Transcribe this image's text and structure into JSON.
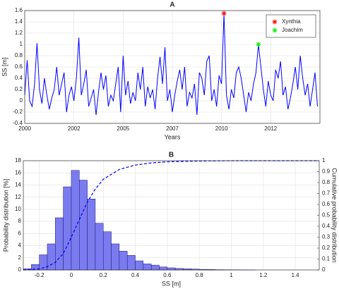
{
  "chart_data": [
    {
      "type": "line",
      "title": "A",
      "x_label": "Years",
      "y_label": "SS [m]",
      "x": [
        2000,
        2000.125,
        2000.25,
        2000.375,
        2000.5,
        2000.625,
        2000.75,
        2000.875,
        2001,
        2001.125,
        2001.25,
        2001.375,
        2001.5,
        2001.625,
        2001.75,
        2001.875,
        2002,
        2002.125,
        2002.25,
        2002.375,
        2002.5,
        2002.625,
        2002.75,
        2002.875,
        2003,
        2003.125,
        2003.25,
        2003.375,
        2003.5,
        2003.625,
        2003.75,
        2003.875,
        2004,
        2004.125,
        2004.25,
        2004.375,
        2004.5,
        2004.625,
        2004.75,
        2004.875,
        2005,
        2005.125,
        2005.25,
        2005.375,
        2005.5,
        2005.625,
        2005.75,
        2005.875,
        2006,
        2006.125,
        2006.25,
        2006.375,
        2006.5,
        2006.625,
        2006.75,
        2006.875,
        2007,
        2007.125,
        2007.25,
        2007.375,
        2007.5,
        2007.625,
        2007.75,
        2007.875,
        2008,
        2008.125,
        2008.25,
        2008.375,
        2008.5,
        2008.625,
        2008.75,
        2008.875,
        2009,
        2009.125,
        2009.25,
        2009.375,
        2009.5,
        2009.625,
        2009.75,
        2009.875,
        2010,
        2010.125,
        2010.25,
        2010.375,
        2010.5,
        2010.625,
        2010.75,
        2010.875,
        2011,
        2011.125,
        2011.25,
        2011.375,
        2011.5,
        2011.625,
        2011.75,
        2011.875,
        2012,
        2012.125,
        2012.25,
        2012.375,
        2012.5,
        2012.625,
        2012.75,
        2012.875,
        2013,
        2013.125,
        2013.25,
        2013.375,
        2013.5,
        2013.625,
        2013.75,
        2013.875,
        2014,
        2014.125,
        2014.25,
        2014.375,
        2014.5,
        2014.625,
        2014.75,
        2014.875
      ],
      "series": [
        {
          "color": "#0000ff",
          "values": [
            0.1,
            0.72,
            0.0,
            -0.1,
            0.3,
            1.02,
            0.2,
            -0.05,
            0.4,
            0.1,
            -0.15,
            0.05,
            0.2,
            0.6,
            0.1,
            0.3,
            0.5,
            -0.2,
            0.1,
            0.25,
            0.0,
            0.4,
            1.12,
            0.1,
            0.3,
            0.55,
            -0.1,
            0.05,
            0.2,
            -0.25,
            0.15,
            0.5,
            0.2,
            0.45,
            -0.1,
            0.1,
            0.0,
            0.3,
            0.6,
            -0.2,
            0.8,
            0.1,
            0.35,
            -0.05,
            0.15,
            0.0,
            0.5,
            0.2,
            0.6,
            -0.1,
            0.25,
            0.05,
            0.2,
            -0.15,
            0.4,
            0.78,
            0.3,
            0.95,
            0.0,
            0.2,
            -0.2,
            0.1,
            0.35,
            0.55,
            0.2,
            0.6,
            -0.1,
            0.15,
            0.05,
            0.3,
            -0.25,
            0.5,
            0.4,
            0.1,
            0.7,
            0.8,
            0.0,
            0.2,
            -0.1,
            0.45,
            0.3,
            1.55,
            0.1,
            -0.15,
            0.2,
            0.05,
            0.5,
            0.6,
            0.4,
            0.1,
            -0.2,
            0.15,
            0.0,
            0.3,
            0.5,
            1.0,
            0.6,
            0.2,
            -0.1,
            0.35,
            0.1,
            0.0,
            0.55,
            0.4,
            0.7,
            0.1,
            0.25,
            -0.15,
            0.05,
            0.3,
            0.6,
            0.2,
            0.8,
            0.4,
            0.1,
            0.3,
            -0.1,
            0.2,
            0.5,
            -0.1
          ]
        }
      ],
      "markers": [
        {
          "name": "Xynthia",
          "x": 2010.125,
          "y": 1.55,
          "color": "#ff0000"
        },
        {
          "name": "Joachim",
          "x": 2011.875,
          "y": 1.0,
          "color": "#00ee00"
        }
      ],
      "legend": "northeast",
      "grid": true,
      "xlim": [
        2000,
        2015
      ],
      "xticks": [
        {
          "value": 2000,
          "label": "2000"
        },
        {
          "value": 2002.5,
          "label": "2002"
        },
        {
          "value": 2005,
          "label": "2005"
        },
        {
          "value": 2007.5,
          "label": "2007"
        },
        {
          "value": 2010,
          "label": "2010"
        },
        {
          "value": 2012.5,
          "label": "2012"
        }
      ],
      "ylim": [
        -0.4,
        1.6
      ],
      "yticks": [
        -0.4,
        -0.2,
        0,
        0.2,
        0.4,
        0.6,
        0.8,
        1,
        1.2,
        1.4,
        1.6
      ]
    },
    {
      "type": "histogram",
      "title": "B",
      "x_label": "SS [m]",
      "y_label": "Probability distribution [%]",
      "y2_label": "Cumulative probability distribution",
      "bins": [
        -0.3,
        -0.25,
        -0.2,
        -0.15,
        -0.1,
        -0.05,
        0,
        0.05,
        0.1,
        0.15,
        0.2,
        0.25,
        0.3,
        0.35,
        0.4,
        0.45,
        0.5,
        0.55,
        0.6,
        0.65,
        0.7,
        0.75,
        0.8,
        0.85,
        0.9,
        0.95,
        1,
        1.05,
        1.1,
        1.15
      ],
      "counts": [
        0.2,
        0.9,
        2.5,
        4.3,
        8.6,
        13.7,
        16.4,
        14.8,
        11.7,
        7.7,
        6.3,
        4.3,
        3.1,
        2.4,
        1.5,
        1.0,
        0.8,
        0.5,
        0.35,
        0.25,
        0.2,
        0.15,
        0.1,
        0.08,
        0.05,
        0.04,
        0.03,
        0.02,
        0.01
      ],
      "color": "#7b7bf0",
      "edge_color": "#1a1a6e",
      "cumulative": {
        "color": "#0000ff",
        "axis": "y2",
        "x": [
          -0.3,
          -0.2,
          -0.15,
          -0.1,
          -0.05,
          0,
          0.05,
          0.1,
          0.15,
          0.2,
          0.3,
          0.4,
          0.5,
          0.6,
          0.8,
          1,
          1.55
        ],
        "values": [
          0,
          0.01,
          0.03,
          0.07,
          0.15,
          0.3,
          0.46,
          0.62,
          0.74,
          0.83,
          0.92,
          0.96,
          0.98,
          0.99,
          0.997,
          1,
          1
        ]
      },
      "grid": true,
      "xlim": [
        -0.3,
        1.55
      ],
      "xticks": [
        -0.2,
        0,
        0.2,
        0.4,
        0.6,
        0.8,
        1,
        1.2,
        1.4
      ],
      "ylim": [
        0,
        18
      ],
      "yticks": [
        0,
        2,
        4,
        6,
        8,
        10,
        12,
        14,
        16,
        18
      ],
      "y2lim": [
        0,
        1
      ],
      "y2ticks": [
        0,
        0.1,
        0.2,
        0.3,
        0.4,
        0.5,
        0.6,
        0.7,
        0.8,
        0.9,
        1
      ]
    }
  ]
}
